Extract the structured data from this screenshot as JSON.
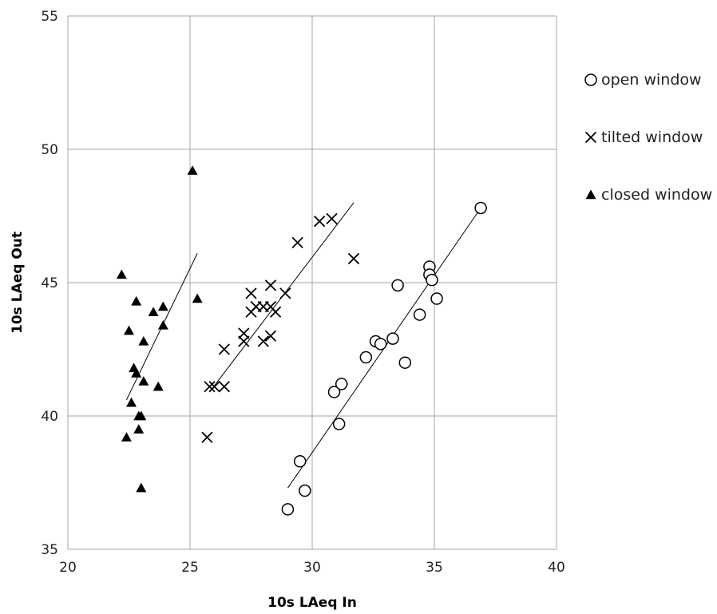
{
  "chart_data": {
    "type": "scatter",
    "title": "",
    "xlabel": "10s LAeq In",
    "ylabel": "10s LAeq Out",
    "xlim": [
      20,
      40
    ],
    "ylim": [
      35,
      55
    ],
    "xticks": [
      "20",
      "25",
      "30",
      "35",
      "40"
    ],
    "yticks": [
      "35",
      "40",
      "45",
      "50",
      "55"
    ],
    "grid": true,
    "legend_position": "right",
    "series": [
      {
        "name": "open window",
        "marker": "circle-open",
        "color": "#000000",
        "points": [
          [
            29.0,
            36.5
          ],
          [
            29.7,
            37.2
          ],
          [
            29.5,
            38.3
          ],
          [
            31.1,
            39.7
          ],
          [
            30.9,
            40.9
          ],
          [
            31.2,
            41.2
          ],
          [
            32.2,
            42.2
          ],
          [
            32.6,
            42.8
          ],
          [
            32.8,
            42.7
          ],
          [
            33.3,
            42.9
          ],
          [
            33.5,
            44.9
          ],
          [
            33.8,
            42.0
          ],
          [
            34.4,
            43.8
          ],
          [
            34.8,
            45.6
          ],
          [
            34.8,
            45.3
          ],
          [
            34.9,
            45.1
          ],
          [
            35.1,
            44.4
          ],
          [
            36.9,
            47.8
          ]
        ],
        "trendline": [
          [
            29.0,
            37.3
          ],
          [
            36.9,
            47.8
          ]
        ]
      },
      {
        "name": "tilted window",
        "marker": "x",
        "color": "#000000",
        "points": [
          [
            25.7,
            39.2
          ],
          [
            25.8,
            41.1
          ],
          [
            26.0,
            41.1
          ],
          [
            26.4,
            41.1
          ],
          [
            26.4,
            42.5
          ],
          [
            27.2,
            42.8
          ],
          [
            27.2,
            43.1
          ],
          [
            27.5,
            43.9
          ],
          [
            27.5,
            44.6
          ],
          [
            27.7,
            44.1
          ],
          [
            28.0,
            42.8
          ],
          [
            28.0,
            44.1
          ],
          [
            28.3,
            43.0
          ],
          [
            28.3,
            44.1
          ],
          [
            28.3,
            44.9
          ],
          [
            28.5,
            43.9
          ],
          [
            28.9,
            44.6
          ],
          [
            29.4,
            46.5
          ],
          [
            30.3,
            47.3
          ],
          [
            30.8,
            47.4
          ],
          [
            31.7,
            45.9
          ]
        ],
        "trendline": [
          [
            25.8,
            40.9
          ],
          [
            31.7,
            48.0
          ]
        ]
      },
      {
        "name": "closed window",
        "marker": "triangle-filled",
        "color": "#000000",
        "points": [
          [
            22.2,
            45.3
          ],
          [
            22.4,
            39.2
          ],
          [
            22.5,
            43.2
          ],
          [
            22.6,
            40.5
          ],
          [
            22.7,
            41.8
          ],
          [
            22.8,
            41.6
          ],
          [
            22.8,
            44.3
          ],
          [
            22.9,
            40.0
          ],
          [
            22.9,
            39.5
          ],
          [
            23.0,
            40.0
          ],
          [
            23.0,
            37.3
          ],
          [
            23.1,
            42.8
          ],
          [
            23.1,
            41.3
          ],
          [
            23.5,
            43.9
          ],
          [
            23.7,
            41.1
          ],
          [
            23.9,
            43.4
          ],
          [
            23.9,
            44.1
          ],
          [
            25.1,
            49.2
          ],
          [
            25.3,
            44.4
          ]
        ],
        "trendline": [
          [
            22.4,
            40.6
          ],
          [
            25.3,
            46.1
          ]
        ]
      }
    ]
  }
}
